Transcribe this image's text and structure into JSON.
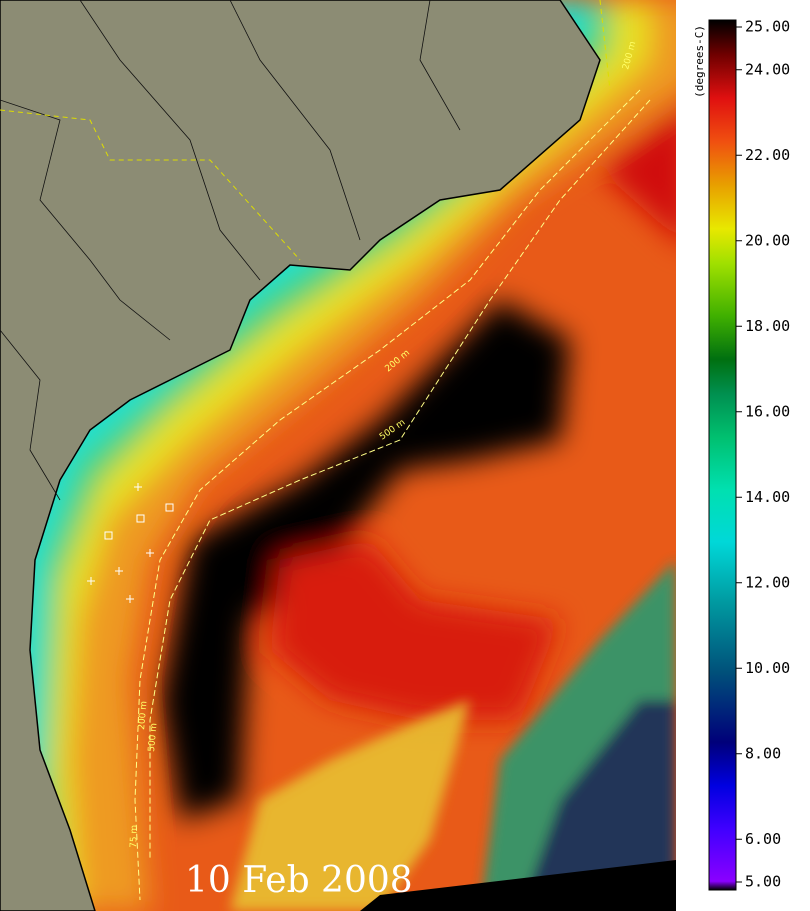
{
  "map": {
    "date_label": "10 Feb 2008",
    "contour_labels": [
      "200 m",
      "500 m",
      "200 m",
      "500 m",
      "75 m",
      "200 m"
    ]
  },
  "colorbar": {
    "unit": "(degrees-C)",
    "lim": [
      5,
      25
    ],
    "ticks": [
      {
        "value": 25,
        "label": "25.00"
      },
      {
        "value": 24,
        "label": "24.00"
      },
      {
        "value": 22,
        "label": "22.00"
      },
      {
        "value": 20,
        "label": "20.00"
      },
      {
        "value": 18,
        "label": "18.00"
      },
      {
        "value": 16,
        "label": "16.00"
      },
      {
        "value": 14,
        "label": "14.00"
      },
      {
        "value": 12,
        "label": "12.00"
      },
      {
        "value": 10,
        "label": "10.00"
      },
      {
        "value": 8,
        "label": "8.00"
      },
      {
        "value": 6,
        "label": "6.00"
      },
      {
        "value": 5,
        "label": "5.00"
      }
    ]
  }
}
